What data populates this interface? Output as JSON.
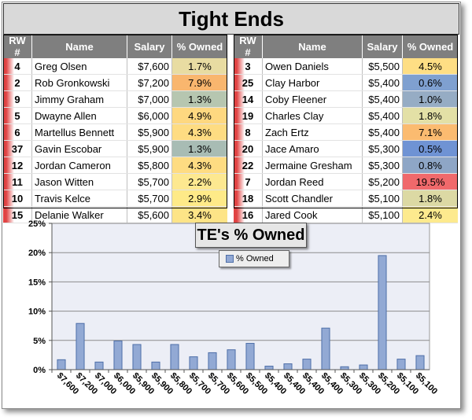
{
  "title": "Tight Ends",
  "table": {
    "headers": [
      "RW #",
      "Name",
      "Salary",
      "% Owned"
    ],
    "left_rows": [
      {
        "rank": "4",
        "name": "Greg Olsen",
        "salary": "$7,600",
        "owned": "1.7%",
        "owned_color": "#e8dca2"
      },
      {
        "rank": "2",
        "name": "Rob Gronkowski",
        "salary": "$7,200",
        "owned": "7.9%",
        "owned_color": "#f9b66e"
      },
      {
        "rank": "9",
        "name": "Jimmy Graham",
        "salary": "$7,000",
        "owned": "1.3%",
        "owned_color": "#b6c6b0"
      },
      {
        "rank": "5",
        "name": "Dwayne Allen",
        "salary": "$6,000",
        "owned": "4.9%",
        "owned_color": "#fed880"
      },
      {
        "rank": "6",
        "name": "Martellus Bennett",
        "salary": "$5,900",
        "owned": "4.3%",
        "owned_color": "#fedc82"
      },
      {
        "rank": "37",
        "name": "Gavin Escobar",
        "salary": "$5,900",
        "owned": "1.3%",
        "owned_color": "#a8bcb4"
      },
      {
        "rank": "12",
        "name": "Jordan Cameron",
        "salary": "$5,800",
        "owned": "4.3%",
        "owned_color": "#fedc82"
      },
      {
        "rank": "11",
        "name": "Jason Witten",
        "salary": "$5,700",
        "owned": "2.2%",
        "owned_color": "#fde890"
      },
      {
        "rank": "10",
        "name": "Travis Kelce",
        "salary": "$5,700",
        "owned": "2.9%",
        "owned_color": "#feea88"
      },
      {
        "rank": "15",
        "name": "Delanie Walker",
        "salary": "$5,600",
        "owned": "3.4%",
        "owned_color": "#fde487"
      }
    ],
    "right_rows": [
      {
        "rank": "3",
        "name": "Owen Daniels",
        "salary": "$5,500",
        "owned": "4.5%",
        "owned_color": "#fede84"
      },
      {
        "rank": "25",
        "name": "Clay Harbor",
        "salary": "$5,400",
        "owned": "0.6%",
        "owned_color": "#7fa0d0"
      },
      {
        "rank": "14",
        "name": "Coby Fleener",
        "salary": "$5,400",
        "owned": "1.0%",
        "owned_color": "#96acc4"
      },
      {
        "rank": "19",
        "name": "Charles Clay",
        "salary": "$5,400",
        "owned": "1.8%",
        "owned_color": "#e3e0a6"
      },
      {
        "rank": "8",
        "name": "Zach Ertz",
        "salary": "$5,400",
        "owned": "7.1%",
        "owned_color": "#fbbb70"
      },
      {
        "rank": "20",
        "name": "Jace Amaro",
        "salary": "$5,300",
        "owned": "0.5%",
        "owned_color": "#6f93d4"
      },
      {
        "rank": "22",
        "name": "Jermaine Gresham",
        "salary": "$5,300",
        "owned": "0.8%",
        "owned_color": "#8ea6c6"
      },
      {
        "rank": "7",
        "name": "Jordan Reed",
        "salary": "$5,200",
        "owned": "19.5%",
        "owned_color": "#f0696b"
      },
      {
        "rank": "18",
        "name": "Scott Chandler",
        "salary": "$5,100",
        "owned": "1.8%",
        "owned_color": "#dcd9a4"
      },
      {
        "rank": "16",
        "name": "Jared Cook",
        "salary": "$5,100",
        "owned": "2.4%",
        "owned_color": "#fdea8e"
      }
    ]
  },
  "chart_data": {
    "type": "bar",
    "title": "TE's % Owned",
    "legend": "% Owned",
    "legend_position": "top-center",
    "categories": [
      "$7,600",
      "$7,200",
      "$7,000",
      "$6,000",
      "$5,900",
      "$5,900",
      "$5,800",
      "$5,700",
      "$5,700",
      "$5,600",
      "$5,500",
      "$5,400",
      "$5,400",
      "$5,400",
      "$5,400",
      "$5,300",
      "$5,300",
      "$5,200",
      "$5,100",
      "$5,100"
    ],
    "values": [
      1.7,
      7.9,
      1.3,
      4.9,
      4.3,
      1.3,
      4.3,
      2.2,
      2.9,
      3.4,
      4.5,
      0.6,
      1.0,
      1.8,
      7.1,
      0.5,
      0.8,
      19.5,
      1.8,
      2.4
    ],
    "y_ticks": [
      "0%",
      "5%",
      "10%",
      "15%",
      "20%",
      "25%"
    ],
    "ylim": [
      0,
      25
    ],
    "grid": true,
    "bar_color": "#92a9d4",
    "bar_edge_color": "#4f6fa8",
    "plot_background": "#eceef6"
  }
}
